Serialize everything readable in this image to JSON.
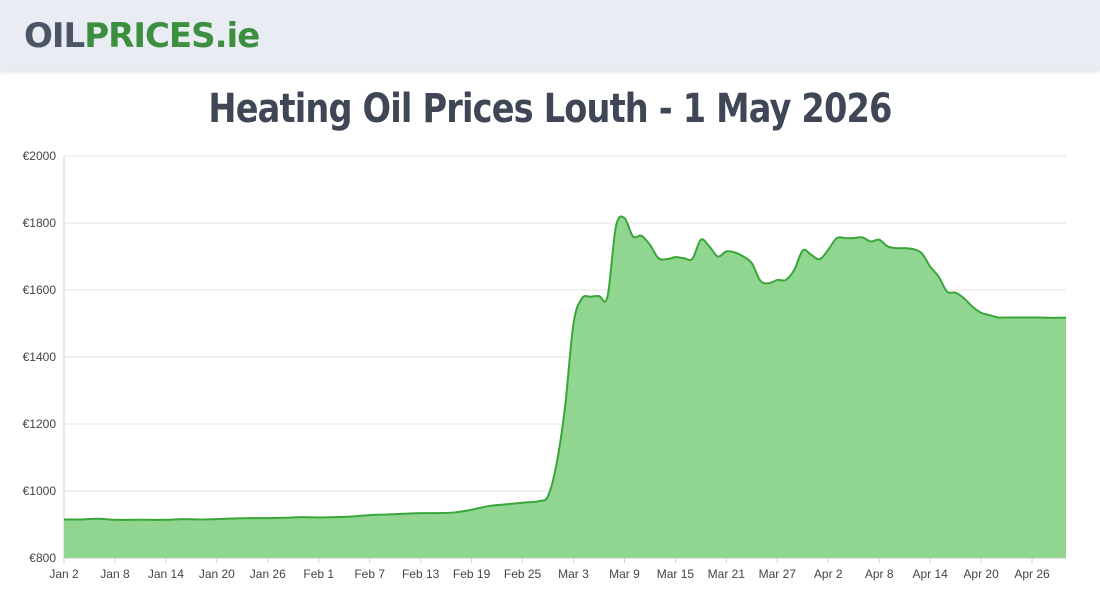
{
  "header": {
    "logo": {
      "part1": "OIL",
      "part2": "PRICES",
      "part3": ".ie"
    },
    "colors": {
      "background": "#e9ecf3",
      "logo_dark": "#4c5566",
      "logo_green": "#3c8f3f"
    }
  },
  "page": {
    "title": "Heating Oil Prices Louth - 1 May 2026"
  },
  "chart_data": {
    "type": "area",
    "title": "",
    "xlabel": "",
    "ylabel": "",
    "ylim": [
      800,
      2000
    ],
    "yticks": [
      800,
      1000,
      1200,
      1400,
      1600,
      1800,
      2000
    ],
    "ytick_labels": [
      "€800",
      "€1000",
      "€1200",
      "€1400",
      "€1600",
      "€1800",
      "€2000"
    ],
    "grid": true,
    "legend": "none",
    "colors": {
      "line": "#3aa63a",
      "fill": "#90d690"
    },
    "x_start": "Jan 2",
    "x_end": "Apr 30",
    "xtick_labels": [
      "Jan 2",
      "Jan 8",
      "Jan 14",
      "Jan 20",
      "Jan 26",
      "Feb 1",
      "Feb 7",
      "Feb 13",
      "Feb 19",
      "Feb 25",
      "Mar 3",
      "Mar 9",
      "Mar 15",
      "Mar 21",
      "Mar 27",
      "Apr 2",
      "Apr 8",
      "Apr 14",
      "Apr 20",
      "Apr 26"
    ],
    "series": [
      {
        "points": [
          [
            "Jan 2",
            915
          ],
          [
            "Jan 4",
            915
          ],
          [
            "Jan 6",
            917
          ],
          [
            "Jan 8",
            914
          ],
          [
            "Jan 10",
            914
          ],
          [
            "Jan 12",
            914
          ],
          [
            "Jan 14",
            914
          ],
          [
            "Jan 16",
            916
          ],
          [
            "Jan 18",
            915
          ],
          [
            "Jan 20",
            916
          ],
          [
            "Jan 22",
            918
          ],
          [
            "Jan 24",
            919
          ],
          [
            "Jan 26",
            919
          ],
          [
            "Jan 28",
            920
          ],
          [
            "Jan 30",
            922
          ],
          [
            "Feb 1",
            921
          ],
          [
            "Feb 3",
            922
          ],
          [
            "Feb 5",
            924
          ],
          [
            "Feb 7",
            928
          ],
          [
            "Feb 9",
            930
          ],
          [
            "Feb 11",
            932
          ],
          [
            "Feb 13",
            934
          ],
          [
            "Feb 15",
            934
          ],
          [
            "Feb 17",
            936
          ],
          [
            "Feb 19",
            944
          ],
          [
            "Feb 21",
            955
          ],
          [
            "Feb 23",
            960
          ],
          [
            "Feb 25",
            965
          ],
          [
            "Feb 27",
            970
          ],
          [
            "Feb 28",
            985
          ],
          [
            "Mar 1",
            1080
          ],
          [
            "Mar 2",
            1250
          ],
          [
            "Mar 3",
            1500
          ],
          [
            "Mar 4",
            1575
          ],
          [
            "Mar 5",
            1580
          ],
          [
            "Mar 6",
            1582
          ],
          [
            "Mar 7",
            1580
          ],
          [
            "Mar 8",
            1790
          ],
          [
            "Mar 9",
            1815
          ],
          [
            "Mar 10",
            1760
          ],
          [
            "Mar 11",
            1762
          ],
          [
            "Mar 12",
            1735
          ],
          [
            "Mar 13",
            1695
          ],
          [
            "Mar 14",
            1692
          ],
          [
            "Mar 15",
            1698
          ],
          [
            "Mar 16",
            1695
          ],
          [
            "Mar 17",
            1693
          ],
          [
            "Mar 18",
            1750
          ],
          [
            "Mar 19",
            1730
          ],
          [
            "Mar 20",
            1700
          ],
          [
            "Mar 21",
            1715
          ],
          [
            "Mar 22",
            1712
          ],
          [
            "Mar 23",
            1700
          ],
          [
            "Mar 24",
            1680
          ],
          [
            "Mar 25",
            1628
          ],
          [
            "Mar 26",
            1620
          ],
          [
            "Mar 27",
            1630
          ],
          [
            "Mar 28",
            1630
          ],
          [
            "Mar 29",
            1660
          ],
          [
            "Mar 30",
            1718
          ],
          [
            "Mar 31",
            1705
          ],
          [
            "Apr 1",
            1692
          ],
          [
            "Apr 2",
            1720
          ],
          [
            "Apr 3",
            1755
          ],
          [
            "Apr 4",
            1755
          ],
          [
            "Apr 5",
            1755
          ],
          [
            "Apr 6",
            1757
          ],
          [
            "Apr 7",
            1745
          ],
          [
            "Apr 8",
            1750
          ],
          [
            "Apr 9",
            1730
          ],
          [
            "Apr 10",
            1725
          ],
          [
            "Apr 11",
            1725
          ],
          [
            "Apr 12",
            1722
          ],
          [
            "Apr 13",
            1710
          ],
          [
            "Apr 14",
            1670
          ],
          [
            "Apr 15",
            1640
          ],
          [
            "Apr 16",
            1595
          ],
          [
            "Apr 17",
            1592
          ],
          [
            "Apr 18",
            1575
          ],
          [
            "Apr 19",
            1550
          ],
          [
            "Apr 20",
            1532
          ],
          [
            "Apr 21",
            1525
          ],
          [
            "Apr 22",
            1518
          ],
          [
            "Apr 23",
            1518
          ],
          [
            "Apr 24",
            1518
          ],
          [
            "Apr 25",
            1518
          ],
          [
            "Apr 26",
            1518
          ],
          [
            "Apr 27",
            1518
          ],
          [
            "Apr 28",
            1517
          ],
          [
            "Apr 29",
            1517
          ],
          [
            "Apr 30",
            1517
          ]
        ]
      }
    ]
  }
}
